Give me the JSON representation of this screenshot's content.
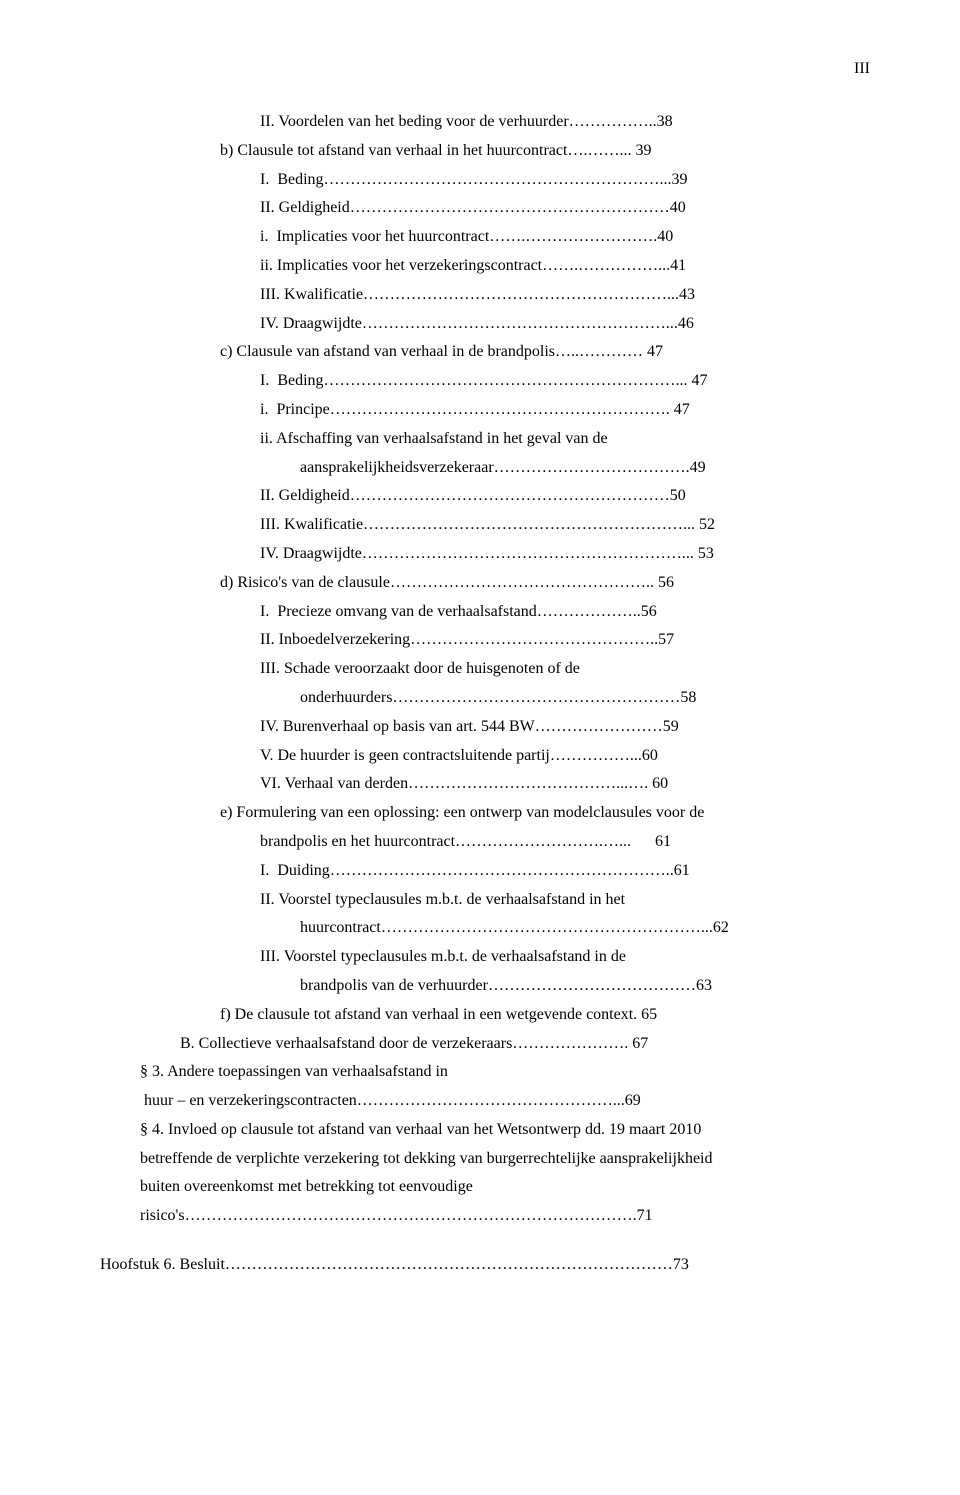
{
  "page_number_label": "III",
  "lines": [
    {
      "indent": 4,
      "text": "II. Voordelen van het beding voor de verhuurder……………..38"
    },
    {
      "indent": 3,
      "text": "b) Clausule tot afstand van verhaal in het huurcontract….……... 39"
    },
    {
      "indent": 4,
      "text": "I.  Beding………………………………………………………...39"
    },
    {
      "indent": 4,
      "text": "II. Geldigheid……………………………………………………40"
    },
    {
      "indent": 4,
      "text": "i.  Implicaties voor het huurcontract…….…………………….40"
    },
    {
      "indent": 4,
      "text": "ii. Implicaties voor het verzekeringscontract…….……………...41"
    },
    {
      "indent": 4,
      "text": "III. Kwalificatie…………………………………………………...43"
    },
    {
      "indent": 4,
      "text": "IV. Draagwijdte…………………………………………………...46"
    },
    {
      "indent": 3,
      "text": "c) Clausule van afstand van verhaal in de brandpolis…..………… 47"
    },
    {
      "indent": 4,
      "text": "I.  Beding…………………………………………………………... 47"
    },
    {
      "indent": 4,
      "text": "i.  Principe………………………………………………………. 47"
    },
    {
      "indent": 4,
      "text": "ii. Afschaffing van verhaalsafstand in het geval van de"
    },
    {
      "indent": 5,
      "text": "aansprakelijkheidsverzekeraar……………………………….49"
    },
    {
      "indent": 4,
      "text": "II. Geldigheid……………………………………………………50"
    },
    {
      "indent": 4,
      "text": "III. Kwalificatie……………………………………………………... 52"
    },
    {
      "indent": 4,
      "text": "IV. Draagwijdte……………………………………………………... 53"
    },
    {
      "indent": 3,
      "text": "d) Risico's van de clausule………………………………………….. 56"
    },
    {
      "indent": 4,
      "text": "I.  Precieze omvang van de verhaalsafstand………………..56"
    },
    {
      "indent": 4,
      "text": "II. Inboedelverzekering………………………………………..57"
    },
    {
      "indent": 4,
      "text": "III. Schade veroorzaakt door de huisgenoten of de"
    },
    {
      "indent": 5,
      "text": "onderhuurders………………………………………………58"
    },
    {
      "indent": 4,
      "text": "IV. Burenverhaal op basis van art. 544 BW……………………59"
    },
    {
      "indent": 4,
      "text": "V. De huurder is geen contractsluitende partij……………...60"
    },
    {
      "indent": 4,
      "text": "VI. Verhaal van derden…………………………………...…. 60"
    },
    {
      "indent": 3,
      "text": "e) Formulering van een oplossing: een ontwerp van modelclausules voor de"
    },
    {
      "indent": 4,
      "text": "brandpolis en het huurcontract……………………….…...      61"
    },
    {
      "indent": 4,
      "text": "I.  Duiding………………………………………………………..61"
    },
    {
      "indent": 4,
      "text": "II. Voorstel typeclausules m.b.t. de verhaalsafstand in het"
    },
    {
      "indent": 5,
      "text": "huurcontract……………………………………………………...62"
    },
    {
      "indent": 4,
      "text": "III. Voorstel typeclausules m.b.t. de verhaalsafstand in de"
    },
    {
      "indent": 5,
      "text": "brandpolis van de verhuurder…………………………………63"
    },
    {
      "indent": 3,
      "text": "f) De clausule tot afstand van verhaal in een wetgevende context. 65"
    },
    {
      "indent": 2,
      "text": "B. Collectieve verhaalsafstand door de verzekeraars…………………. 67"
    },
    {
      "indent": 1,
      "text": "§ 3. Andere toepassingen van verhaalsafstand in"
    },
    {
      "indent": 1,
      "text": " huur – en verzekeringscontracten…………………………………………...69"
    },
    {
      "indent": 1,
      "text": "§ 4. Invloed op clausule tot afstand van verhaal van het Wetsontwerp dd. 19 maart 2010"
    },
    {
      "indent": 1,
      "text": "betreffende de verplichte verzekering tot dekking van burgerrechtelijke aansprakelijkheid"
    },
    {
      "indent": 1,
      "text": "buiten overeenkomst met betrekking tot eenvoudige"
    },
    {
      "indent": 1,
      "text": "risico's………………………………………………………………………….71"
    },
    {
      "indent": -1,
      "text": ""
    },
    {
      "indent": 0,
      "text": "Hoofstuk 6. Besluit…………………………………………………………………………73"
    }
  ],
  "style": {
    "font_family": "Times New Roman",
    "font_size_pt": 12,
    "text_color": "#000000",
    "background_color": "#ffffff",
    "line_height": 1.8
  }
}
